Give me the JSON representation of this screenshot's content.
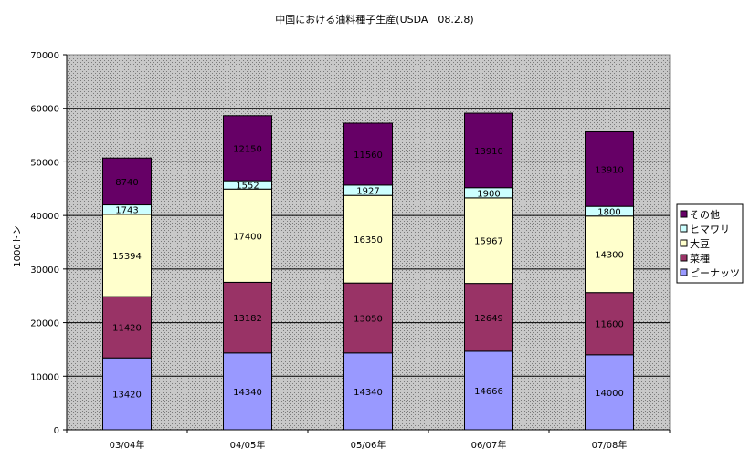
{
  "chart_data": {
    "type": "bar",
    "stacked": true,
    "title": "中国における油料種子生産(USDA　08.2.8)",
    "xlabel": "",
    "ylabel": "1000トン",
    "ylim": [
      0,
      70000
    ],
    "yticks": [
      0,
      10000,
      20000,
      30000,
      40000,
      50000,
      60000,
      70000
    ],
    "grid": true,
    "legend_position": "right",
    "categories": [
      "03/04年",
      "04/05年",
      "05/06年",
      "06/07年",
      "07/08年"
    ],
    "series": [
      {
        "name": "ピーナッツ",
        "color": "#9999FF",
        "values": [
          13420,
          14340,
          14340,
          14666,
          14000
        ]
      },
      {
        "name": "菜種",
        "color": "#993366",
        "values": [
          11420,
          13182,
          13050,
          12649,
          11600
        ]
      },
      {
        "name": "大豆",
        "color": "#FFFFCC",
        "values": [
          15394,
          17400,
          16350,
          15967,
          14300
        ]
      },
      {
        "name": "ヒマワリ",
        "color": "#CCFFFF",
        "values": [
          1743,
          1552,
          1927,
          1900,
          1800
        ]
      },
      {
        "name": "その他",
        "color": "#660066",
        "values": [
          8740,
          12150,
          11560,
          13910,
          13910
        ]
      }
    ],
    "legend_order": [
      "その他",
      "ヒマワリ",
      "大豆",
      "菜種",
      "ピーナッツ"
    ]
  }
}
